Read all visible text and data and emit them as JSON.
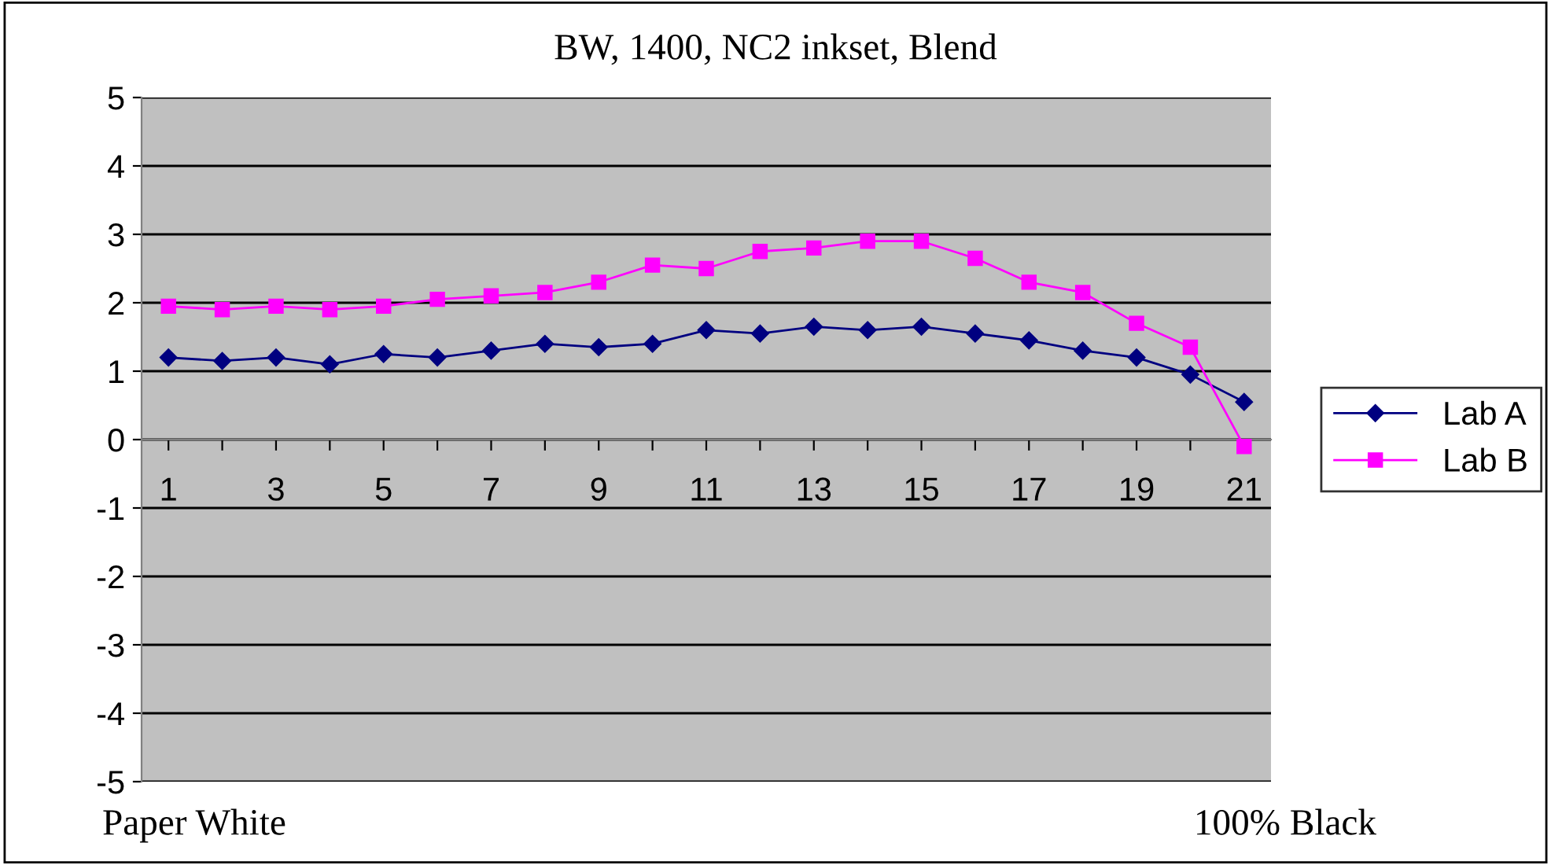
{
  "chart_data": {
    "type": "line",
    "title": "BW, 1400, NC2 inkset, Blend",
    "categories": [
      "1",
      null,
      "3",
      null,
      "5",
      null,
      "7",
      null,
      "9",
      null,
      "11",
      null,
      "13",
      null,
      "15",
      null,
      "17",
      null,
      "19",
      null,
      "21"
    ],
    "series": [
      {
        "name": "Lab A",
        "color": "#000080",
        "marker": "diamond",
        "values": [
          1.2,
          1.15,
          1.2,
          1.1,
          1.25,
          1.2,
          1.3,
          1.4,
          1.35,
          1.4,
          1.6,
          1.55,
          1.65,
          1.6,
          1.65,
          1.55,
          1.45,
          1.3,
          1.2,
          0.95,
          0.55
        ]
      },
      {
        "name": "Lab B",
        "color": "#ff00ff",
        "marker": "square",
        "values": [
          1.95,
          1.9,
          1.95,
          1.9,
          1.95,
          2.05,
          2.1,
          2.15,
          2.3,
          2.55,
          2.5,
          2.75,
          2.8,
          2.9,
          2.9,
          2.65,
          2.3,
          2.15,
          1.7,
          1.35,
          -0.1
        ]
      }
    ],
    "ylim": [
      -5,
      5
    ],
    "yticks": [
      -5,
      -4,
      -3,
      -2,
      -1,
      0,
      1,
      2,
      3,
      4,
      5
    ],
    "grid": "y",
    "legend": "right",
    "annotations": [
      "Paper White",
      "100% Black"
    ]
  }
}
